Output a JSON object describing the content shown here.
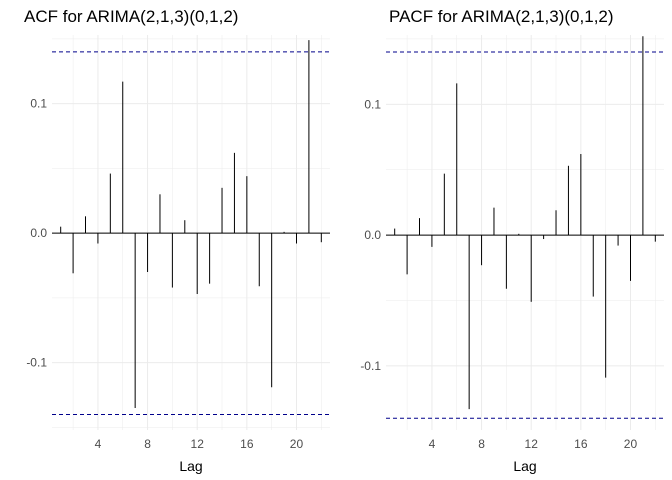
{
  "chart_data": [
    {
      "type": "bar",
      "title": "ACF for ARIMA(2,1,3)(0,1,2)",
      "xlabel": "Lag",
      "ylabel": "",
      "ylim": [
        -0.152,
        0.153
      ],
      "xlim": [
        0.3,
        22.7
      ],
      "x_ticks": [
        4,
        8,
        12,
        16,
        20
      ],
      "y_ticks": [
        -0.1,
        0.0,
        0.1
      ],
      "y_tick_labels": [
        "-0.1",
        "0.0",
        "0.1"
      ],
      "confidence_limit": 0.14,
      "grid": true,
      "x": [
        1,
        2,
        3,
        4,
        5,
        6,
        7,
        8,
        9,
        10,
        11,
        12,
        13,
        14,
        15,
        16,
        17,
        18,
        19,
        20,
        21,
        22
      ],
      "values": [
        0.005,
        -0.031,
        0.013,
        -0.008,
        0.046,
        0.117,
        -0.135,
        -0.03,
        0.03,
        -0.042,
        0.01,
        -0.047,
        -0.039,
        0.035,
        0.062,
        0.044,
        -0.041,
        -0.119,
        0.001,
        -0.008,
        0.149,
        -0.007
      ],
      "colors": {
        "bar": "#000000",
        "ci": "#00008b",
        "grid": "#ebebeb"
      }
    },
    {
      "type": "bar",
      "title": "PACF for ARIMA(2,1,3)(0,1,2)",
      "xlabel": "Lag",
      "ylabel": "",
      "ylim": [
        -0.149,
        0.153
      ],
      "xlim": [
        0.3,
        22.7
      ],
      "x_ticks": [
        4,
        8,
        12,
        16,
        20
      ],
      "y_ticks": [
        -0.1,
        0.0,
        0.1
      ],
      "y_tick_labels": [
        "-0.1",
        "0.0",
        "0.1"
      ],
      "confidence_limit": 0.14,
      "grid": true,
      "x": [
        1,
        2,
        3,
        4,
        5,
        6,
        7,
        8,
        9,
        10,
        11,
        12,
        13,
        14,
        15,
        16,
        17,
        18,
        19,
        20,
        21,
        22
      ],
      "values": [
        0.005,
        -0.03,
        0.013,
        -0.009,
        0.047,
        0.116,
        -0.133,
        -0.023,
        0.021,
        -0.041,
        0.001,
        -0.051,
        -0.003,
        0.019,
        0.053,
        0.062,
        -0.047,
        -0.109,
        -0.008,
        -0.035,
        0.152,
        -0.005
      ],
      "colors": {
        "bar": "#000000",
        "ci": "#00008b",
        "grid": "#ebebeb"
      }
    }
  ]
}
